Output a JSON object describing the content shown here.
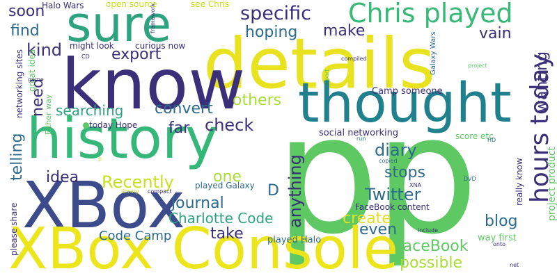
{
  "words": [
    {
      "text": "p",
      "color": "#5ec962"
    },
    {
      "text": "p",
      "color": "#5ec962"
    },
    {
      "text": "details",
      "color": "#e8e21f"
    },
    {
      "text": "know",
      "color": "#3b2f7a"
    },
    {
      "text": "thought",
      "color": "#21808d"
    },
    {
      "text": "history",
      "color": "#35b779"
    },
    {
      "text": "XBox",
      "color": "#3b4b8c"
    },
    {
      "text": "XBox Console",
      "color": "#ede51b"
    },
    {
      "text": "sure",
      "color": "#2da37f"
    },
    {
      "text": "Chris played",
      "color": "#38b977"
    },
    {
      "text": "specific",
      "color": "#3b2f7a"
    },
    {
      "text": "soon",
      "color": "#3b2f7a"
    },
    {
      "text": "find",
      "color": "#2c6b8e"
    },
    {
      "text": "kind",
      "color": "#3b2f7a"
    },
    {
      "text": "hoping",
      "color": "#2c6b8e"
    },
    {
      "text": "make",
      "color": "#3b2f7a"
    },
    {
      "text": "vain",
      "color": "#3b2f7a"
    },
    {
      "text": "export",
      "color": "#3b2f7a"
    },
    {
      "text": "wanting",
      "color": "#3b2f7a"
    },
    {
      "text": "hours today",
      "color": "#3b2f7a"
    },
    {
      "text": "need",
      "color": "#3b2f7a"
    },
    {
      "text": "searching",
      "color": "#2da37f"
    },
    {
      "text": "convert",
      "color": "#2c6b8e"
    },
    {
      "text": "others",
      "color": "#a9dc36"
    },
    {
      "text": "check",
      "color": "#3b2f7a"
    },
    {
      "text": "far",
      "color": "#3b2f7a"
    },
    {
      "text": "telling",
      "color": "#2c6b8e"
    },
    {
      "text": "diary",
      "color": "#2c6b8e"
    },
    {
      "text": "idea",
      "color": "#3b2f7a"
    },
    {
      "text": "one",
      "color": "#a9dc36"
    },
    {
      "text": "Recently",
      "color": "#c8e020"
    },
    {
      "text": "journal",
      "color": "#2c6b8e"
    },
    {
      "text": "D",
      "color": "#2c6b8e"
    },
    {
      "text": "stops",
      "color": "#2c6b8e"
    },
    {
      "text": "Twitter",
      "color": "#2c6b8e"
    },
    {
      "text": "anything",
      "color": "#3b2f7a"
    },
    {
      "text": "Charlotte Code",
      "color": "#2da37f"
    },
    {
      "text": "create",
      "color": "#e3df22"
    },
    {
      "text": "take",
      "color": "#3b2f7a"
    },
    {
      "text": "even",
      "color": "#2c6b8e"
    },
    {
      "text": "blog",
      "color": "#2c6b8e"
    },
    {
      "text": "Code Camp",
      "color": "#2c6b8e"
    },
    {
      "text": "FaceBook",
      "color": "#5ec962"
    },
    {
      "text": "possible",
      "color": "#a9dc36"
    },
    {
      "text": "Camp someone",
      "color": "#3b2f7a"
    },
    {
      "text": "played Halo",
      "color": "#2c6b8e"
    },
    {
      "text": "played Galaxy",
      "color": "#2c6b8e"
    },
    {
      "text": "social networking",
      "color": "#3b2f7a"
    },
    {
      "text": "score etc",
      "color": "#5ec962"
    },
    {
      "text": "FaceBook content",
      "color": "#3b2f7a"
    },
    {
      "text": "really know",
      "color": "#3b2f7a"
    },
    {
      "text": "project product",
      "color": "#5ec962"
    },
    {
      "text": "way first",
      "color": "#5ec962"
    },
    {
      "text": "today Hope",
      "color": "#3b2f7a"
    },
    {
      "text": "networking sites",
      "color": "#3b2f7a"
    },
    {
      "text": "great idea",
      "color": "#5ec962"
    },
    {
      "text": "Either way",
      "color": "#5ec962"
    },
    {
      "text": "please share",
      "color": "#3b2f7a"
    },
    {
      "text": "Halo Wars",
      "color": "#3b2f7a"
    },
    {
      "text": "open source",
      "color": "#c8e020"
    },
    {
      "text": "framework",
      "color": "#3b2f7a"
    },
    {
      "text": "see Chris",
      "color": "#c8e020"
    },
    {
      "text": "might look",
      "color": "#3b2f7a"
    },
    {
      "text": "curious now",
      "color": "#3b2f7a"
    },
    {
      "text": "compiled",
      "color": "#3b2f7a"
    },
    {
      "text": "part",
      "color": "#5ec962"
    },
    {
      "text": "Galaxy Wars",
      "color": "#2c6b8e"
    },
    {
      "text": "project",
      "color": "#5ec962"
    },
    {
      "text": "CD",
      "color": "#3b2f7a"
    },
    {
      "text": "game",
      "color": "#3b2f7a"
    },
    {
      "text": "run",
      "color": "#2c6b8e"
    },
    {
      "text": "HD",
      "color": "#2c6b8e"
    },
    {
      "text": "copied",
      "color": "#2c6b8e"
    },
    {
      "text": "XNA",
      "color": "#3b2f7a"
    },
    {
      "text": "DVD",
      "color": "#2c6b8e"
    },
    {
      "text": "include",
      "color": "#3b2f7a"
    },
    {
      "text": "onto",
      "color": "#3b2f7a"
    },
    {
      "text": "net",
      "color": "#3b2f7a"
    },
    {
      "text": "library",
      "color": "#c8e020"
    },
    {
      "text": "compact",
      "color": "#3b2f7a"
    },
    {
      "text": "p",
      "color": "#c8e020"
    }
  ],
  "bullet_color": "#5ec962"
}
